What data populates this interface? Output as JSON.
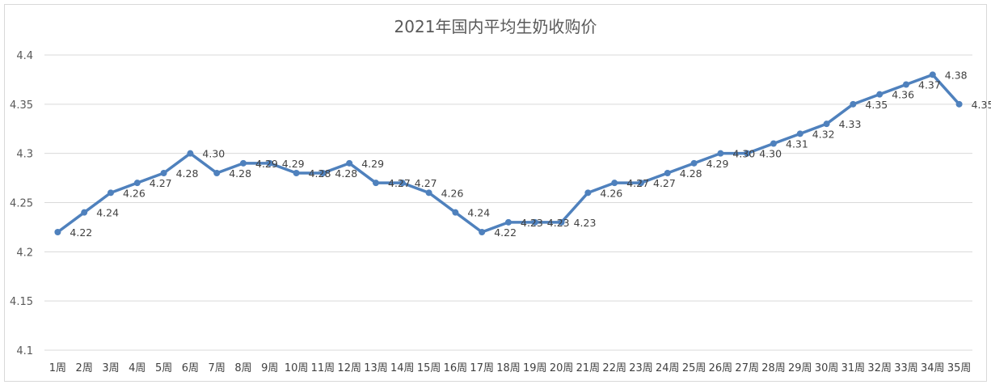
{
  "chart_data": {
    "type": "line",
    "title": "2021年国内平均生奶收购价",
    "xlabel": "",
    "ylabel": "",
    "ylim": [
      4.1,
      4.4
    ],
    "yticks": [
      "4.1",
      "4.15",
      "4.2",
      "4.25",
      "4.3",
      "4.35",
      "4.4"
    ],
    "grid": true,
    "legend": "none",
    "line_color": "#4f81bd",
    "categories": [
      "1周",
      "2周",
      "3周",
      "4周",
      "5周",
      "6周",
      "7周",
      "8周",
      "9周",
      "10周",
      "11周",
      "12周",
      "13周",
      "14周",
      "15周",
      "16周",
      "17周",
      "18周",
      "19周",
      "20周",
      "21周",
      "22周",
      "23周",
      "24周",
      "25周",
      "26周",
      "27周",
      "28周",
      "29周",
      "30周",
      "31周",
      "32周",
      "33周",
      "34周",
      "35周"
    ],
    "values": [
      4.22,
      4.24,
      4.26,
      4.27,
      4.28,
      4.3,
      4.28,
      4.29,
      4.29,
      4.28,
      4.28,
      4.29,
      4.27,
      4.27,
      4.26,
      4.24,
      4.22,
      4.23,
      4.23,
      4.23,
      4.26,
      4.27,
      4.27,
      4.28,
      4.29,
      4.3,
      4.3,
      4.31,
      4.32,
      4.33,
      4.35,
      4.36,
      4.37,
      4.38,
      4.35
    ],
    "data_labels": [
      "4.22",
      "4.24",
      "4.26",
      "4.27",
      "4.28",
      "4.30",
      "4.28",
      "4.29",
      "4.29",
      "4.28",
      "4.28",
      "4.29",
      "4.27",
      "4.27",
      "4.26",
      "4.24",
      "4.22",
      "4.23",
      "4.23",
      "4.23",
      "4.26",
      "4.27",
      "4.27",
      "4.28",
      "4.29",
      "4.30",
      "4.30",
      "4.31",
      "4.32",
      "4.33",
      "4.35",
      "4.36",
      "4.37",
      "4.38",
      "4.35"
    ]
  }
}
